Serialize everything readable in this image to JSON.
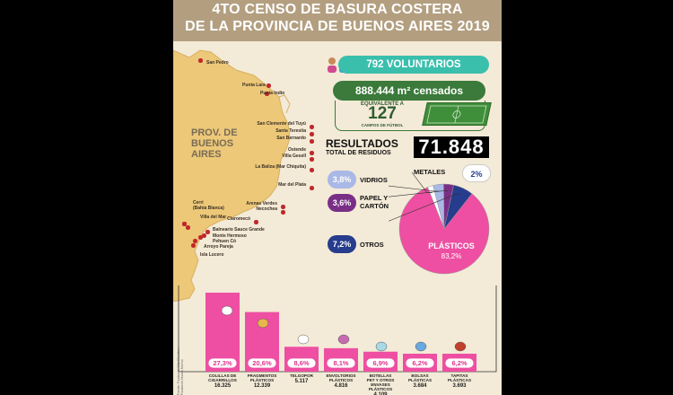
{
  "title_line1": "4TO CENSO DE BASURA COSTERA",
  "title_line2": "DE LA PROVINCIA DE BUENOS AIRES 2019",
  "volunteers": "792 VOLUNTARIOS",
  "surveyed_area": "888.444 m² censados",
  "equivalent_label": "EQUIVALENTE A",
  "equivalent_value": "127",
  "equivalent_unit": "CAMPOS DE FÚTBOL",
  "results_label": "RESULTADOS",
  "total_label": "TOTAL DE RESIDUOS",
  "total_value": "71.848",
  "province_label": [
    "PROV. DE",
    "BUENOS",
    "AIRES"
  ],
  "credit": "Fuente: Fundación Vida Silvestre / Fundación Mundo Marino",
  "cities": [
    {
      "name": "San Pedro"
    },
    {
      "name": "Punta Lara"
    },
    {
      "name": "Punta Indio"
    },
    {
      "name": "San Clemente del Tuyú"
    },
    {
      "name": "Santa Teresita"
    },
    {
      "name": "San Bernardo"
    },
    {
      "name": "Ostende"
    },
    {
      "name": "Villa Gesell"
    },
    {
      "name": "La Baliza (Mar Chiquita)"
    },
    {
      "name": "Mar del Plata"
    },
    {
      "name": "Arenas Verdes"
    },
    {
      "name": "Necochea"
    },
    {
      "name": "Claromecó"
    },
    {
      "name": "Cerri"
    },
    {
      "name": "(Bahía Blanca)"
    },
    {
      "name": "Villa del Mar"
    },
    {
      "name": "Balneario Sauce Grande"
    },
    {
      "name": "Monte Hermoso"
    },
    {
      "name": "Pehuen Có"
    },
    {
      "name": "Arroyo Pareja"
    },
    {
      "name": "Isla Lucero"
    }
  ],
  "colors": {
    "header": "#b39f80",
    "pink": "#ee4fa2",
    "teal": "#3bbfad",
    "green": "#3b7a3a",
    "vidrios": "#a9b8e6",
    "papel": "#7a2f86",
    "otros": "#263c8c",
    "metales": "#ffffff",
    "map": "#ecc878"
  },
  "chart_data": [
    {
      "type": "pie",
      "title": "RESULTADOS",
      "slices": [
        {
          "label": "PLÁSTICOS",
          "pct_label": "83,2%",
          "value": 83.2,
          "color": "#ee4fa2"
        },
        {
          "label": "OTROS",
          "pct_label": "7,2%",
          "value": 7.2,
          "color": "#263c8c"
        },
        {
          "label": "PAPEL Y CARTÓN",
          "pct_label": "3,6%",
          "value": 3.6,
          "color": "#7a2f86"
        },
        {
          "label": "VIDRIOS",
          "pct_label": "3,8%",
          "value": 3.8,
          "color": "#a9b8e6"
        },
        {
          "label": "METALES",
          "pct_label": "2%",
          "value": 2.0,
          "color": "#ffffff"
        }
      ]
    },
    {
      "type": "bar",
      "categories": [
        "COLILLAS DE CIGARRILLOS",
        "FRAGMENTOS PLÁSTICOS",
        "TELGOPOR",
        "ENVOLTORIOS PLÁSTICOS",
        "BOTELLAS PET Y OTROS ENVASES PLÁSTICOS",
        "BOLSAS PLÁSTICAS",
        "TAPITAS PLÁSTICAS"
      ],
      "values": [
        27.3,
        20.6,
        8.6,
        8.1,
        6.9,
        6.2,
        6.2
      ],
      "value_labels": [
        "27,3%",
        "20,6%",
        "8,6%",
        "8,1%",
        "6,9%",
        "6,2%",
        "6,2%"
      ],
      "counts": [
        "16.325",
        "12.339",
        "5.117",
        "4.816",
        "4.109",
        "3.684",
        "3.693"
      ],
      "color": "#ee4fa2",
      "ylim": [
        0,
        27.3
      ]
    }
  ]
}
